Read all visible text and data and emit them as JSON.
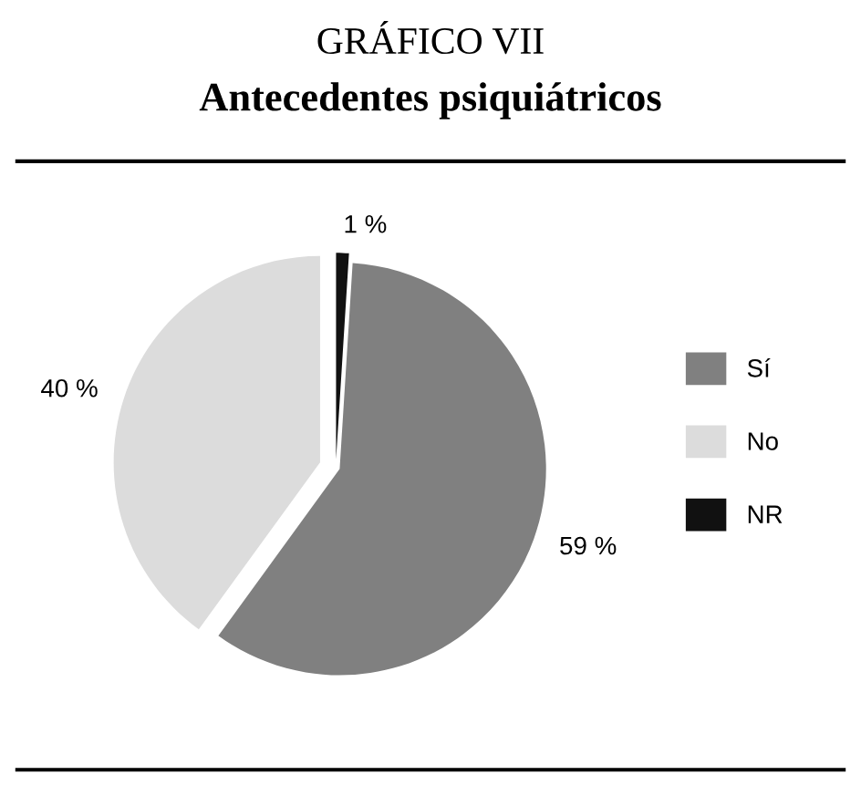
{
  "chart_data": {
    "type": "pie",
    "title": "GRÁFICO VII",
    "subtitle": "Antecedentes psiquiátricos",
    "categories": [
      "Sí",
      "No",
      "NR"
    ],
    "values": [
      59,
      40,
      1
    ],
    "colors": [
      "#808080",
      "#dcdcdc",
      "#111111"
    ],
    "value_labels": [
      "59 %",
      "40 %",
      "1 %"
    ],
    "legend": "right"
  }
}
